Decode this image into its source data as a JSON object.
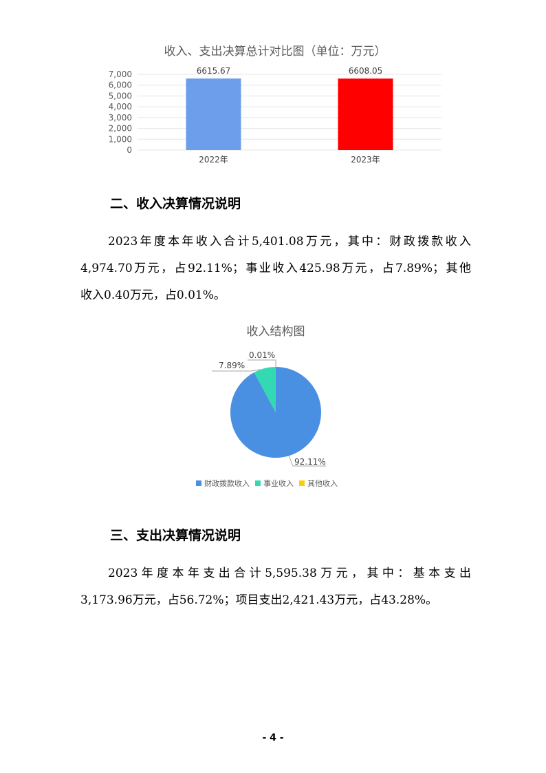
{
  "chart_data": [
    {
      "type": "bar",
      "title": "收入、支出决算总计对比图（单位：万元）",
      "categories": [
        "2022年",
        "2023年"
      ],
      "values": [
        6615.67,
        6608.05
      ],
      "data_labels": [
        "6615.67",
        "6608.05"
      ],
      "colors": [
        "#6d9eeb",
        "#ff0000"
      ],
      "ylim": [
        0,
        7000
      ],
      "yticks": [
        "0",
        "1,000",
        "2,000",
        "3,000",
        "4,000",
        "5,000",
        "6,000",
        "7,000"
      ],
      "grid": true
    },
    {
      "type": "pie",
      "title": "收入结构图",
      "categories": [
        "财政拨款收入",
        "事业收入",
        "其他收入"
      ],
      "values": [
        92.11,
        7.89,
        0.01
      ],
      "labels": [
        "92.11%",
        "7.89%",
        "0.01%"
      ],
      "colors": [
        "#4a90e2",
        "#33d9b2",
        "#ffcc00"
      ],
      "legend": "bottom"
    }
  ],
  "section2": {
    "heading": "二、收入决算情况说明",
    "lines": [
      "2023年度本年收入合计5,401.08万元，其中：财政拨款收入",
      "4,974.70万元，占92.11%；事业收入425.98万元，占7.89%；其他",
      "收入0.40万元，占0.01%。"
    ]
  },
  "section3": {
    "heading": "三、支出决算情况说明",
    "lines": [
      "2023年度本年支出合计5,595.38万元，其中：基本支出",
      "3,173.96万元，占56.72%；项目支出2,421.43万元，占43.28%。"
    ]
  },
  "page_number": "- 4 -"
}
